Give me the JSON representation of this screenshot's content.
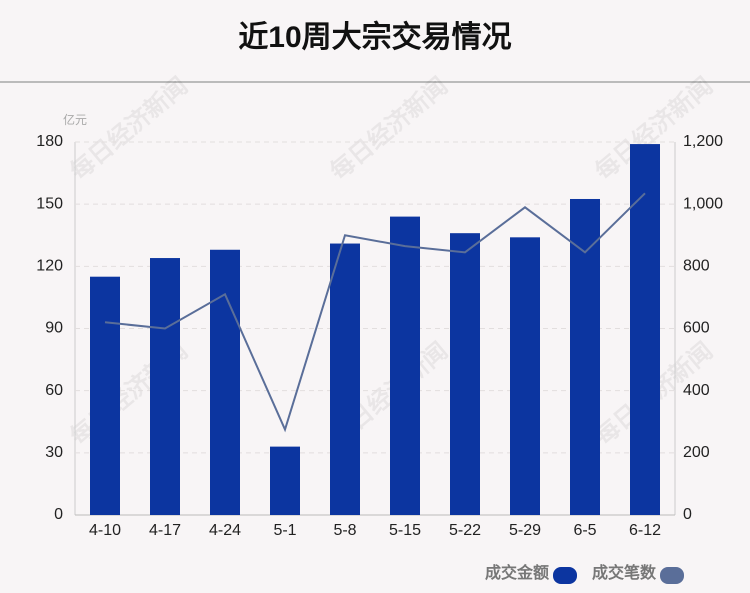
{
  "chart_data": {
    "type": "bar_line",
    "title": "近10周大宗交易情况",
    "y_unit": "亿元",
    "watermark": "每日经济新闻",
    "categories": [
      "4-10",
      "4-17",
      "4-24",
      "5-1",
      "5-8",
      "5-15",
      "5-22",
      "5-29",
      "6-5",
      "6-12"
    ],
    "series": [
      {
        "name": "成交金额",
        "type": "bar",
        "color": "#0c35a0",
        "values": [
          115,
          124,
          128,
          33,
          131,
          144,
          136,
          134,
          152.5,
          179
        ]
      },
      {
        "name": "成交笔数",
        "type": "line",
        "axis": "y2",
        "color": "#5a6e99",
        "values": [
          620,
          600,
          710,
          275,
          900,
          865,
          845,
          990,
          845,
          1035
        ]
      }
    ],
    "ylim": [
      0,
      180
    ],
    "yticks": [
      0,
      30,
      60,
      90,
      120,
      150,
      180
    ],
    "y2lim": [
      0,
      1200
    ],
    "y2ticks": [
      0,
      200,
      400,
      600,
      800,
      {
        "value": 1000,
        "label": "1,000"
      },
      {
        "value": 1200,
        "label": "1,200"
      }
    ],
    "grid": true,
    "legend": "bottom-right"
  }
}
